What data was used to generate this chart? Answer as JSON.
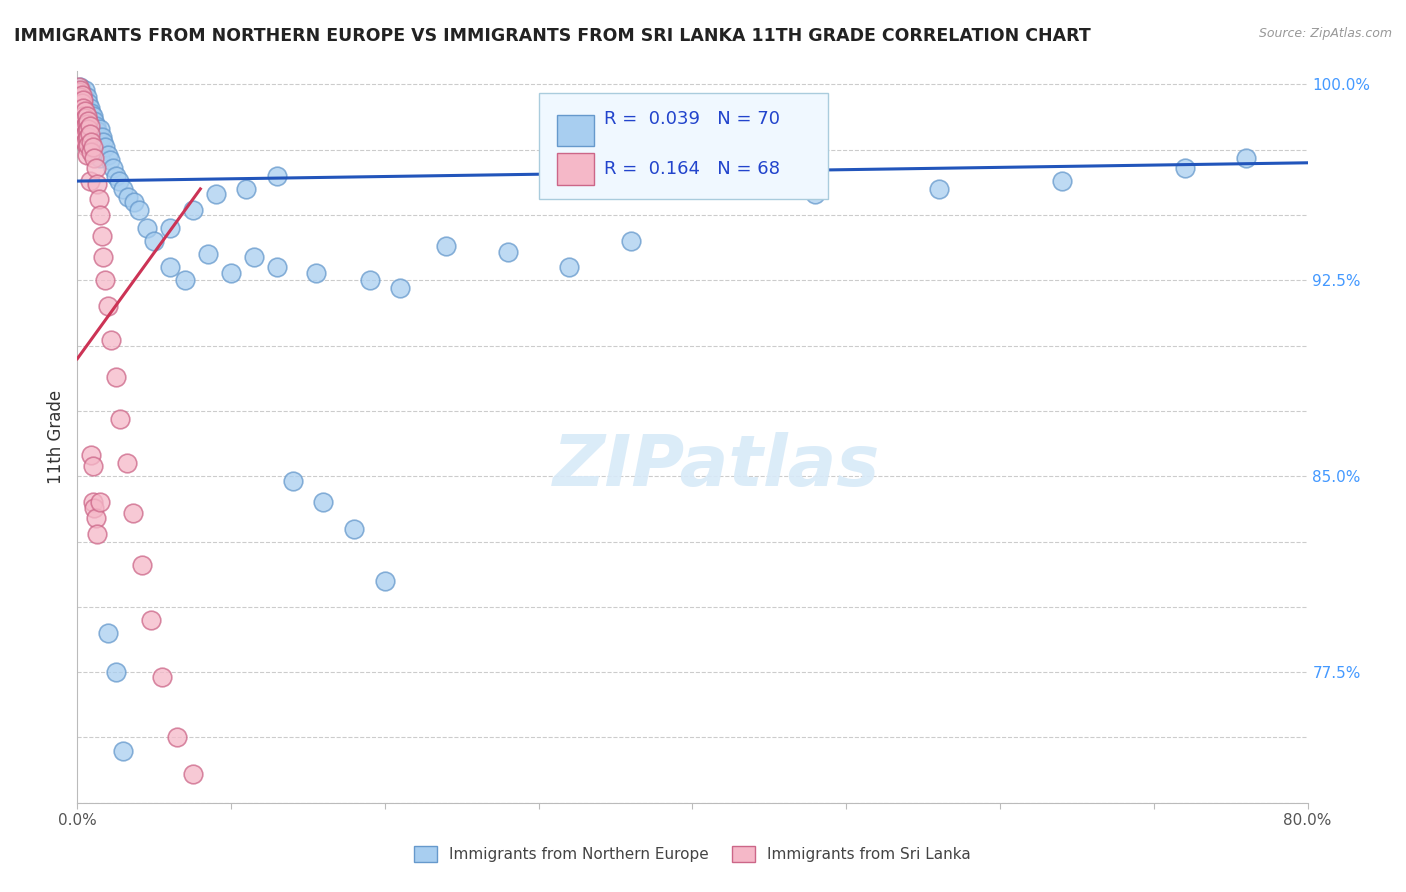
{
  "title": "IMMIGRANTS FROM NORTHERN EUROPE VS IMMIGRANTS FROM SRI LANKA 11TH GRADE CORRELATION CHART",
  "source": "Source: ZipAtlas.com",
  "ylabel": "11th Grade",
  "blue_R": "0.039",
  "blue_N": "70",
  "pink_R": "0.164",
  "pink_N": "68",
  "blue_color": "#A8CEF0",
  "blue_edge": "#6699CC",
  "pink_color": "#F5B8C8",
  "pink_edge": "#CC6688",
  "trendline_blue_color": "#2255BB",
  "trendline_pink_color": "#CC3355",
  "x_min": 0.0,
  "x_max": 0.8,
  "y_min": 0.725,
  "y_max": 1.005,
  "y_ticks": [
    0.725,
    0.75,
    0.775,
    0.8,
    0.825,
    0.85,
    0.875,
    0.9,
    0.925,
    0.95,
    0.975,
    1.0
  ],
  "y_tick_labels_right": [
    "",
    "",
    "77.5%",
    "",
    "",
    "85.0%",
    "",
    "",
    "92.5%",
    "",
    "",
    "100.0%"
  ],
  "x_ticks": [
    0.0,
    0.1,
    0.2,
    0.3,
    0.4,
    0.5,
    0.6,
    0.7,
    0.8
  ],
  "x_tick_labels": [
    "0.0%",
    "",
    "",
    "",
    "",
    "",
    "",
    "",
    "80.0%"
  ],
  "watermark_text": "ZIPatlas",
  "blue_trendline_y": [
    0.963,
    0.97
  ],
  "pink_trendline_y0": 0.895,
  "pink_trendline_slope": 0.8,
  "blue_x": [
    0.002,
    0.003,
    0.004,
    0.004,
    0.005,
    0.005,
    0.006,
    0.006,
    0.007,
    0.007,
    0.008,
    0.008,
    0.009,
    0.009,
    0.01,
    0.01,
    0.011,
    0.011,
    0.012,
    0.012,
    0.013,
    0.014,
    0.015,
    0.015,
    0.016,
    0.017,
    0.018,
    0.02,
    0.021,
    0.023,
    0.025,
    0.027,
    0.03,
    0.033,
    0.037,
    0.04,
    0.045,
    0.05,
    0.06,
    0.07,
    0.085,
    0.1,
    0.115,
    0.13,
    0.155,
    0.19,
    0.21,
    0.24,
    0.28,
    0.32,
    0.36,
    0.06,
    0.075,
    0.09,
    0.11,
    0.13,
    0.38,
    0.42,
    0.48,
    0.56,
    0.64,
    0.72,
    0.76,
    0.14,
    0.16,
    0.18,
    0.2,
    0.02,
    0.025,
    0.03
  ],
  "blue_y": [
    0.999,
    0.997,
    0.996,
    0.993,
    0.998,
    0.991,
    0.995,
    0.988,
    0.993,
    0.985,
    0.991,
    0.983,
    0.989,
    0.981,
    0.988,
    0.979,
    0.986,
    0.977,
    0.984,
    0.975,
    0.982,
    0.98,
    0.983,
    0.972,
    0.98,
    0.978,
    0.976,
    0.973,
    0.971,
    0.968,
    0.965,
    0.963,
    0.96,
    0.957,
    0.955,
    0.952,
    0.945,
    0.94,
    0.93,
    0.925,
    0.935,
    0.928,
    0.934,
    0.93,
    0.928,
    0.925,
    0.922,
    0.938,
    0.936,
    0.93,
    0.94,
    0.945,
    0.952,
    0.958,
    0.96,
    0.965,
    0.965,
    0.962,
    0.958,
    0.96,
    0.963,
    0.968,
    0.972,
    0.848,
    0.84,
    0.83,
    0.81,
    0.79,
    0.775,
    0.745
  ],
  "pink_x": [
    0.001,
    0.001,
    0.001,
    0.001,
    0.002,
    0.002,
    0.002,
    0.002,
    0.002,
    0.003,
    0.003,
    0.003,
    0.003,
    0.003,
    0.003,
    0.004,
    0.004,
    0.004,
    0.004,
    0.004,
    0.004,
    0.005,
    0.005,
    0.005,
    0.005,
    0.005,
    0.006,
    0.006,
    0.006,
    0.006,
    0.006,
    0.006,
    0.007,
    0.007,
    0.007,
    0.007,
    0.008,
    0.008,
    0.008,
    0.009,
    0.009,
    0.009,
    0.01,
    0.01,
    0.01,
    0.011,
    0.011,
    0.012,
    0.012,
    0.013,
    0.013,
    0.014,
    0.015,
    0.015,
    0.016,
    0.017,
    0.018,
    0.02,
    0.022,
    0.025,
    0.028,
    0.032,
    0.036,
    0.042,
    0.048,
    0.055,
    0.065,
    0.075
  ],
  "pink_y": [
    0.999,
    0.997,
    0.994,
    0.991,
    0.998,
    0.995,
    0.992,
    0.989,
    0.986,
    0.996,
    0.993,
    0.99,
    0.987,
    0.984,
    0.981,
    0.994,
    0.991,
    0.988,
    0.985,
    0.982,
    0.979,
    0.99,
    0.987,
    0.984,
    0.981,
    0.978,
    0.988,
    0.985,
    0.982,
    0.979,
    0.976,
    0.973,
    0.986,
    0.983,
    0.98,
    0.977,
    0.984,
    0.981,
    0.963,
    0.978,
    0.974,
    0.858,
    0.976,
    0.854,
    0.84,
    0.972,
    0.838,
    0.968,
    0.834,
    0.962,
    0.828,
    0.956,
    0.95,
    0.84,
    0.942,
    0.934,
    0.925,
    0.915,
    0.902,
    0.888,
    0.872,
    0.855,
    0.836,
    0.816,
    0.795,
    0.773,
    0.75,
    0.736
  ]
}
